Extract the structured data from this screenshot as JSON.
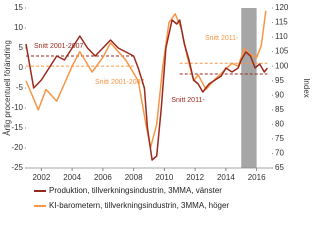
{
  "chart_data": {
    "type": "line",
    "y_label": "Årlig procentuell förändring",
    "y2_label": "Index",
    "xlim": [
      2001,
      2017
    ],
    "xticks": [
      2002,
      2004,
      2006,
      2008,
      2010,
      2012,
      2014,
      2016
    ],
    "ylim": [
      -25,
      15
    ],
    "yticks": [
      -25,
      -20,
      -15,
      -10,
      -5,
      0,
      5,
      10,
      15
    ],
    "y2lim": [
      65,
      120
    ],
    "y2ticks": [
      65,
      70,
      75,
      80,
      85,
      90,
      95,
      100,
      105,
      110,
      115,
      120
    ],
    "shaded_range": [
      2015,
      2016
    ],
    "series": [
      {
        "name": "Produktion, tillverkningsindustrin, 3MMA, vänster",
        "color": "#9b2a1e",
        "axis": "y",
        "x": [
          2001.0,
          2001.5,
          2002.0,
          2002.5,
          2003.0,
          2003.5,
          2004.0,
          2004.5,
          2005.0,
          2005.5,
          2006.0,
          2006.5,
          2007.0,
          2007.5,
          2008.0,
          2008.3,
          2008.7,
          2008.9,
          2009.2,
          2009.5,
          2009.8,
          2010.1,
          2010.5,
          2010.8,
          2011.0,
          2011.3,
          2011.6,
          2011.9,
          2012.2,
          2012.5,
          2012.9,
          2013.3,
          2013.7,
          2014.0,
          2014.4,
          2014.8,
          2015.0,
          2015.3,
          2015.6,
          2015.9,
          2016.2,
          2016.5,
          2016.7
        ],
        "values": [
          6,
          -5,
          -3,
          0,
          3,
          2,
          5,
          8,
          5,
          3,
          5,
          7,
          5,
          4,
          3,
          0,
          -5,
          -15,
          -23,
          -22,
          -10,
          5,
          12,
          11,
          12,
          6,
          2,
          -3,
          -4,
          -6,
          -4,
          -3,
          -2,
          0,
          -1,
          0,
          2,
          4,
          3,
          0,
          1,
          -1,
          0
        ]
      },
      {
        "name": "KI-barometern, tillverkningsindustrin, 3MMA, höger",
        "color": "#f79646",
        "axis": "y2",
        "x": [
          2001.0,
          2001.8,
          2002.3,
          2003.0,
          2004.0,
          2004.5,
          2005.3,
          2006.0,
          2006.5,
          2007.0,
          2007.5,
          2008.3,
          2008.8,
          2009.1,
          2009.5,
          2009.9,
          2010.3,
          2010.7,
          2011.1,
          2011.5,
          2011.9,
          2012.2,
          2012.7,
          2013.2,
          2013.6,
          2014.0,
          2014.4,
          2014.8,
          2015.2,
          2015.6,
          2016.0,
          2016.3,
          2016.6
        ],
        "values": [
          95,
          85,
          92,
          88,
          100,
          105,
          98,
          103,
          108,
          105,
          102,
          95,
          80,
          72,
          80,
          100,
          115,
          118,
          113,
          103,
          95,
          97,
          92,
          95,
          97,
          99,
          101,
          100,
          106,
          104,
          103,
          107,
          119
        ]
      }
    ],
    "averages": [
      {
        "label": "Snitt 2001-2007",
        "color": "#9b2a1e",
        "axis": "y",
        "value": 3,
        "from": 2001,
        "to": 2008
      },
      {
        "label": "Snitt 2001-2007",
        "color": "#f79646",
        "axis": "y2",
        "value": 100,
        "from": 2001,
        "to": 2008
      },
      {
        "label": "Snitt 2011-",
        "color": "#f79646",
        "axis": "y2",
        "value": 101,
        "from": 2011,
        "to": 2016.7
      },
      {
        "label": "Snitt 2011-",
        "color": "#9b2a1e",
        "axis": "y",
        "value": -1.5,
        "from": 2011,
        "to": 2016.7
      }
    ]
  }
}
